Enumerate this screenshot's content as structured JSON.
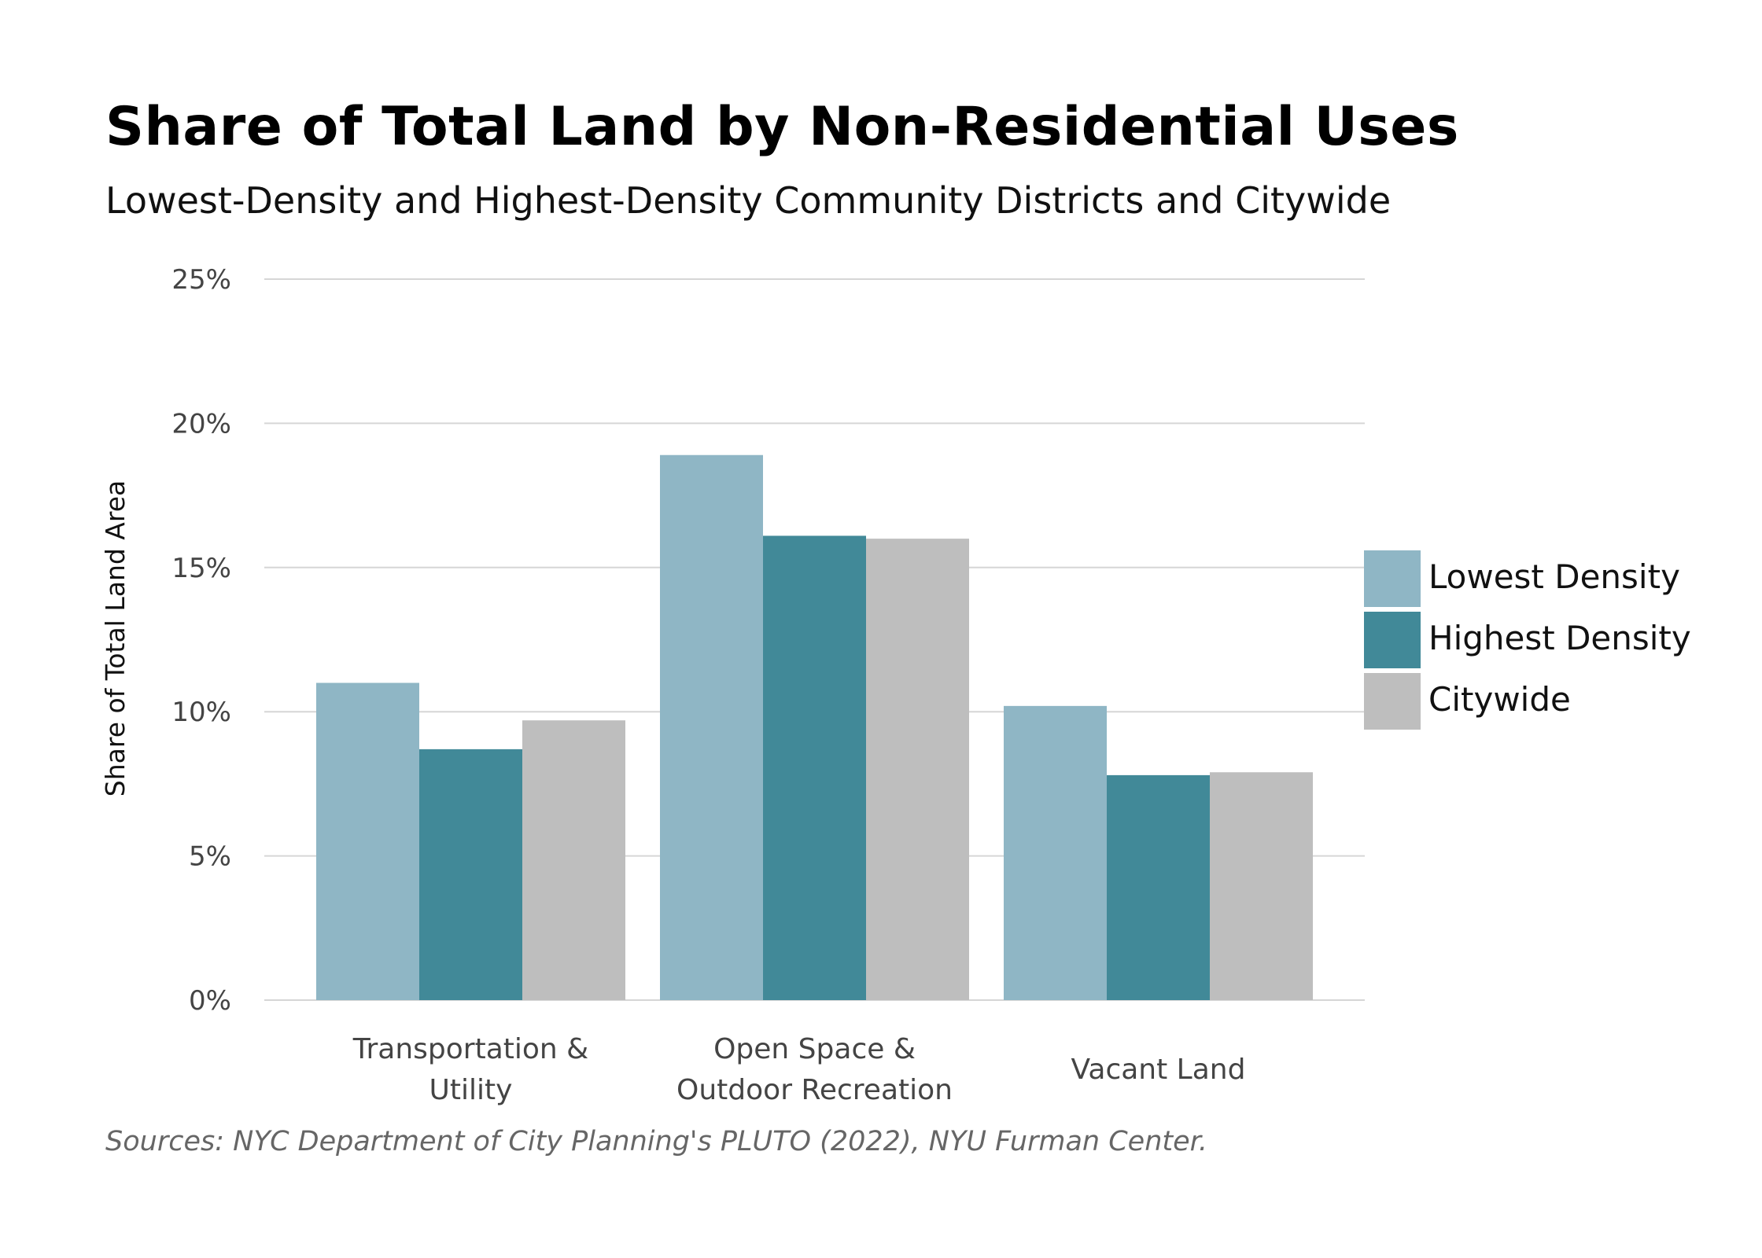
{
  "chart_data": {
    "type": "bar",
    "title": "Share of Total Land by Non-Residential Uses",
    "subtitle": "Lowest-Density and Highest-Density Community Districts and Citywide",
    "ylabel": "Share of Total Land Area",
    "xlabel": "",
    "ylim": [
      0,
      25
    ],
    "yticks": [
      0,
      5,
      10,
      15,
      20,
      25
    ],
    "ytick_labels": [
      "0%",
      "5%",
      "10%",
      "15%",
      "20%",
      "25%"
    ],
    "categories": [
      [
        "Transportation &",
        "Utility"
      ],
      [
        "Open Space &",
        "Outdoor Recreation"
      ],
      [
        "Vacant Land"
      ]
    ],
    "series": [
      {
        "name": "Lowest Density",
        "color": "#8fb6c5",
        "values": [
          11.0,
          18.9,
          10.2
        ]
      },
      {
        "name": "Highest Density",
        "color": "#418998",
        "values": [
          8.7,
          16.1,
          7.8
        ]
      },
      {
        "name": "Citywide",
        "color": "#bebebe",
        "values": [
          9.7,
          16.0,
          7.9
        ]
      }
    ],
    "grid": true,
    "legend_position": "right",
    "source": "Sources: NYC Department of City Planning's PLUTO (2022), NYU Furman Center."
  }
}
